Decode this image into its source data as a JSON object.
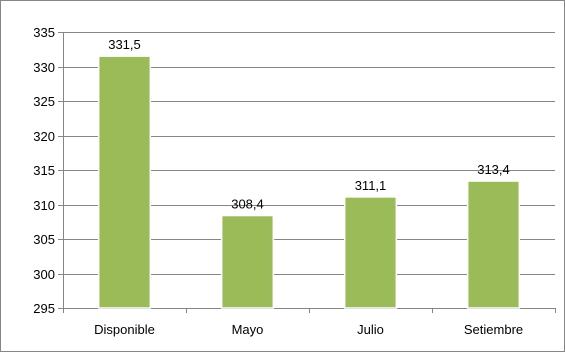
{
  "chart_data": {
    "type": "bar",
    "title": "",
    "xlabel": "",
    "ylabel": "",
    "categories": [
      "Disponible",
      "Mayo",
      "Julio",
      "Setiembre"
    ],
    "values": [
      331.5,
      308.4,
      311.1,
      313.4
    ],
    "data_labels": [
      "331,5",
      "308,4",
      "311,1",
      "313,4"
    ],
    "ylim": [
      295,
      335
    ],
    "yticks": [
      295,
      300,
      305,
      310,
      315,
      320,
      325,
      330,
      335
    ],
    "grid": true,
    "legend": "none",
    "colors": {
      "bar": "#9BBB59",
      "bar_border": "#ffffff",
      "gridline": "#868686",
      "axis": "#868686"
    }
  }
}
